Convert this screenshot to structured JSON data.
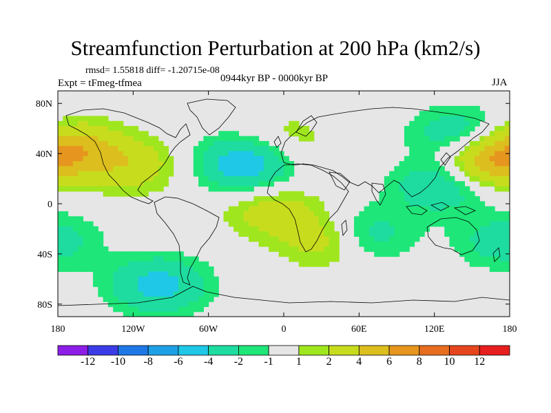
{
  "figure": {
    "title": "Streamfunction Perturbation at 200 hPa (km2/s)",
    "stats": "rmsd= 1.55818  diff= -1.20715e-08",
    "period": "0944kyr BP - 0000kyr BP",
    "experiment": "Expt = tFmeg-tfmea",
    "season": "JJA"
  },
  "map": {
    "projection": "cylindrical equidistant",
    "lon_range": [
      -180,
      180
    ],
    "lat_range": [
      -90,
      90
    ],
    "lon_ticks": [
      {
        "value": -180,
        "label": "180"
      },
      {
        "value": -120,
        "label": "120W"
      },
      {
        "value": -60,
        "label": "60W"
      },
      {
        "value": 0,
        "label": "0"
      },
      {
        "value": 60,
        "label": "60E"
      },
      {
        "value": 120,
        "label": "120E"
      },
      {
        "value": 180,
        "label": "180"
      }
    ],
    "lat_ticks": [
      {
        "value": 80,
        "label": "80N"
      },
      {
        "value": 40,
        "label": "40N"
      },
      {
        "value": 0,
        "label": "0"
      },
      {
        "value": -40,
        "label": "40S"
      },
      {
        "value": -80,
        "label": "80S"
      }
    ],
    "anomaly_centers": [
      {
        "lon": -30,
        "lat": 32,
        "value": -6
      },
      {
        "lon": 40,
        "lat": -28,
        "value": 5
      },
      {
        "lon": -100,
        "lat": -65,
        "value": -5
      },
      {
        "lon": 125,
        "lat": 15,
        "value": -4
      },
      {
        "lon": 160,
        "lat": 35,
        "value": 6
      },
      {
        "lon": -165,
        "lat": 45,
        "value": 4
      },
      {
        "lon": -120,
        "lat": 30,
        "value": 3
      },
      {
        "lon": 60,
        "lat": -25,
        "value": -5
      },
      {
        "lon": 140,
        "lat": 55,
        "value": -4
      },
      {
        "lon": -10,
        "lat": -5,
        "value": 3
      },
      {
        "lon": 0,
        "lat": 50,
        "value": 2
      },
      {
        "lon": 175,
        "lat": -30,
        "value": -3
      }
    ]
  },
  "colorbar": {
    "labels": [
      "-12",
      "-10",
      "-8",
      "-6",
      "-4",
      "-2",
      "-1",
      "1",
      "2",
      "4",
      "6",
      "8",
      "10",
      "12"
    ],
    "colors": [
      "#8c1ee6",
      "#3c3ce6",
      "#1e78e6",
      "#1ea0e6",
      "#1ec8e6",
      "#1edca0",
      "#1ee678",
      "#e6e6e6",
      "#a0e61e",
      "#c8dc1e",
      "#dcbe1e",
      "#e6961e",
      "#e66e1e",
      "#e6461e",
      "#e61e1e"
    ]
  }
}
